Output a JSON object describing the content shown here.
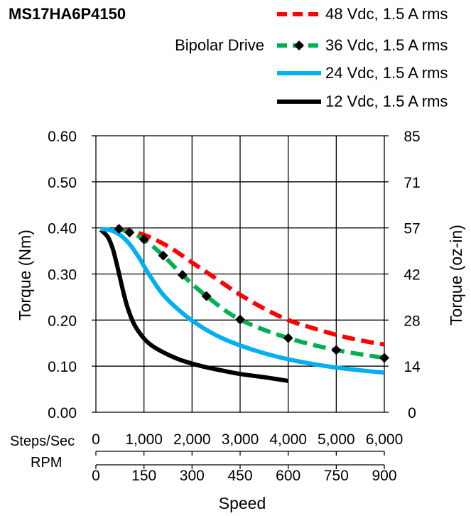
{
  "chart_data": {
    "type": "line",
    "title": "MS17HA6P4150",
    "subtitle": "Bipolar Drive",
    "xlabel": "Speed",
    "ylabel": "Torque (Nm)",
    "y2label": "Torque (oz-in)",
    "x_row_labels": {
      "steps": "Steps/Sec",
      "rpm": "RPM"
    },
    "xlim": [
      0,
      6000
    ],
    "ylim": [
      0,
      0.6
    ],
    "grid": true,
    "legend_position": "top-right",
    "x_ticks_steps": [
      "0",
      "1,000",
      "2,000",
      "3,000",
      "4,000",
      "5,000",
      "6,000"
    ],
    "x_ticks_rpm": [
      "0",
      "150",
      "300",
      "450",
      "600",
      "750",
      "900"
    ],
    "y_ticks": [
      "0.00",
      "0.10",
      "0.20",
      "0.30",
      "0.40",
      "0.50",
      "0.60"
    ],
    "y2_ticks": [
      "0",
      "14",
      "28",
      "42",
      "57",
      "71",
      "85"
    ],
    "series": [
      {
        "name": "48 Vdc, 1.5 A rms",
        "color": "#ff0000",
        "style": "dashed",
        "marker": "none",
        "x": [
          500,
          1000,
          1500,
          2000,
          2500,
          3000,
          3500,
          4000,
          4500,
          5000,
          5500,
          6000
        ],
        "y": [
          0.398,
          0.385,
          0.36,
          0.325,
          0.29,
          0.255,
          0.225,
          0.2,
          0.183,
          0.168,
          0.156,
          0.147
        ]
      },
      {
        "name": "36 Vdc, 1.5 A rms",
        "color": "#00b050",
        "style": "dashed",
        "marker": "diamond",
        "x": [
          480,
          700,
          1000,
          1400,
          1800,
          2300,
          3000,
          4000,
          5000,
          6000
        ],
        "y": [
          0.398,
          0.39,
          0.375,
          0.34,
          0.298,
          0.252,
          0.201,
          0.161,
          0.135,
          0.118
        ],
        "marker_x": [
          480,
          700,
          1000,
          1400,
          1800,
          2300,
          3000,
          4000,
          5000,
          6000
        ],
        "marker_y": [
          0.398,
          0.39,
          0.375,
          0.34,
          0.298,
          0.252,
          0.201,
          0.161,
          0.135,
          0.118
        ]
      },
      {
        "name": "24 Vdc, 1.5 A rms",
        "color": "#00b0f0",
        "style": "solid",
        "marker": "none",
        "x": [
          100,
          300,
          500,
          700,
          900,
          1100,
          1400,
          1800,
          2200,
          2600,
          3000,
          3500,
          4000,
          4500,
          5000,
          5500,
          6000
        ],
        "y": [
          0.398,
          0.395,
          0.385,
          0.365,
          0.335,
          0.3,
          0.255,
          0.215,
          0.185,
          0.162,
          0.145,
          0.128,
          0.115,
          0.105,
          0.097,
          0.091,
          0.086
        ]
      },
      {
        "name": "12 Vdc, 1.5 A rms",
        "color": "#000000",
        "style": "solid",
        "marker": "none",
        "x": [
          100,
          250,
          350,
          450,
          550,
          650,
          800,
          1000,
          1200,
          1500,
          1800,
          2200,
          2600,
          3000,
          3500,
          4000
        ],
        "y": [
          0.396,
          0.38,
          0.355,
          0.315,
          0.27,
          0.23,
          0.19,
          0.16,
          0.142,
          0.125,
          0.112,
          0.1,
          0.091,
          0.083,
          0.076,
          0.068
        ]
      }
    ]
  }
}
